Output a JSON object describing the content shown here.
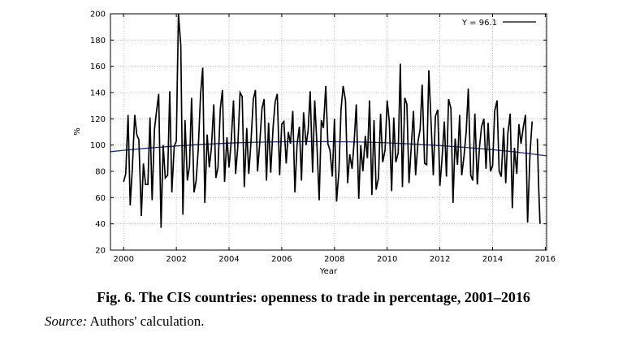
{
  "chart_data": {
    "type": "line",
    "xlabel": "Year",
    "ylabel": "%",
    "xlim": [
      1999.5,
      2016.05
    ],
    "ylim": [
      20,
      200
    ],
    "x_ticks": [
      2000,
      2002,
      2004,
      2006,
      2008,
      2010,
      2012,
      2014,
      2016
    ],
    "y_ticks": [
      20,
      40,
      60,
      80,
      100,
      120,
      140,
      160,
      180,
      200
    ],
    "grid": true,
    "legend": {
      "position": "top-right",
      "label": "Y = 96.1"
    },
    "colors": {
      "series": "#000000",
      "trend": "#1a2a8a",
      "grid": "#b0b0b0"
    },
    "series": [
      {
        "x": [
          2000.0,
          2000.08,
          2000.17,
          2000.25,
          2000.33,
          2000.42,
          2000.5,
          2000.58,
          2000.67,
          2000.75,
          2000.83,
          2000.92,
          2001.0,
          2001.08,
          2001.17,
          2001.25,
          2001.33,
          2001.42,
          2001.5,
          2001.58,
          2001.67,
          2001.75,
          2001.83,
          2001.92,
          2002.0,
          2002.08,
          2002.17,
          2002.25,
          2002.33,
          2002.42,
          2002.5,
          2002.58,
          2002.67,
          2002.75,
          2002.83,
          2002.92,
          2003.0,
          2003.08,
          2003.17,
          2003.25,
          2003.33,
          2003.42,
          2003.5,
          2003.58,
          2003.67,
          2003.75,
          2003.83,
          2003.92,
          2004.0,
          2004.08,
          2004.17,
          2004.25,
          2004.33,
          2004.42,
          2004.5,
          2004.58,
          2004.67,
          2004.75,
          2004.83,
          2004.92,
          2005.0,
          2005.08,
          2005.17,
          2005.25,
          2005.33,
          2005.42,
          2005.5,
          2005.58,
          2005.67,
          2005.75,
          2005.83,
          2005.92,
          2006.0,
          2006.08,
          2006.17,
          2006.25,
          2006.33,
          2006.42,
          2006.5,
          2006.58,
          2006.67,
          2006.75,
          2006.83,
          2006.92,
          2007.0,
          2007.08,
          2007.17,
          2007.25,
          2007.33,
          2007.42,
          2007.5,
          2007.58,
          2007.67,
          2007.75,
          2007.83,
          2007.92,
          2008.0,
          2008.08,
          2008.17,
          2008.25,
          2008.33,
          2008.42,
          2008.5,
          2008.58,
          2008.67,
          2008.75,
          2008.83,
          2008.92,
          2009.0,
          2009.08,
          2009.17,
          2009.25,
          2009.33,
          2009.42,
          2009.5,
          2009.58,
          2009.67,
          2009.75,
          2009.83,
          2009.92,
          2010.0,
          2010.08,
          2010.17,
          2010.25,
          2010.33,
          2010.42,
          2010.5,
          2010.58,
          2010.67,
          2010.75,
          2010.83,
          2010.92,
          2011.0,
          2011.08,
          2011.17,
          2011.25,
          2011.33,
          2011.42,
          2011.5,
          2011.58,
          2011.67,
          2011.75,
          2011.83,
          2011.92,
          2012.0,
          2012.08,
          2012.17,
          2012.25,
          2012.33,
          2012.42,
          2012.5,
          2012.58,
          2012.67,
          2012.75,
          2012.83,
          2012.92,
          2013.0,
          2013.08,
          2013.17,
          2013.25,
          2013.33,
          2013.42,
          2013.5,
          2013.58,
          2013.67,
          2013.75,
          2013.83,
          2013.92,
          2014.0,
          2014.08,
          2014.17,
          2014.25,
          2014.33,
          2014.42,
          2014.5,
          2014.58,
          2014.67,
          2014.75,
          2014.83,
          2014.92,
          2015.0,
          2015.08,
          2015.17,
          2015.25,
          2015.33,
          2015.42,
          2015.5
        ],
        "values": [
          72,
          78,
          123,
          54,
          82,
          123,
          108,
          104,
          46,
          86,
          70,
          70,
          121,
          58,
          112,
          126,
          139,
          37,
          100,
          75,
          77,
          141,
          64,
          99,
          103,
          200,
          176,
          47,
          119,
          73,
          84,
          136,
          64,
          73,
          96,
          139,
          159,
          56,
          108,
          83,
          98,
          131,
          75,
          83,
          128,
          142,
          72,
          106,
          83,
          102,
          134,
          78,
          98,
          140,
          137,
          68,
          113,
          78,
          101,
          135,
          142,
          80,
          103,
          128,
          135,
          73,
          117,
          79,
          113,
          133,
          139,
          77,
          116,
          118,
          86,
          110,
          101,
          126,
          64,
          100,
          114,
          73,
          125,
          100,
          111,
          141,
          79,
          134,
          102,
          58,
          119,
          113,
          145,
          101,
          96,
          76,
          120,
          57,
          80,
          127,
          145,
          134,
          71,
          93,
          82,
          103,
          131,
          59,
          100,
          80,
          107,
          90,
          134,
          62,
          119,
          66,
          75,
          124,
          87,
          96,
          134,
          118,
          65,
          121,
          87,
          94,
          162,
          68,
          136,
          131,
          71,
          100,
          126,
          77,
          103,
          112,
          146,
          86,
          85,
          157,
          115,
          77,
          122,
          127,
          69,
          89,
          118,
          76,
          135,
          128,
          56,
          105,
          85,
          123,
          77,
          92,
          110,
          143,
          77,
          73,
          124,
          70,
          98,
          114,
          120,
          82,
          117,
          80,
          84,
          126,
          134,
          80,
          76,
          113,
          71,
          109,
          124,
          52,
          98,
          78,
          116,
          101,
          114,
          123,
          41,
          94,
          118
        ]
      },
      {
        "x": [
          2015.7,
          2015.75,
          2015.8
        ],
        "values": [
          105,
          67,
          40
        ]
      }
    ],
    "trend": {
      "x": [
        1999.5,
        2000,
        2001,
        2002,
        2003,
        2004,
        2005,
        2006,
        2007,
        2008,
        2009,
        2010,
        2011,
        2012,
        2013,
        2014,
        2015,
        2016.05
      ],
      "values": [
        95,
        96,
        97.8,
        99.3,
        100.6,
        101.5,
        102.2,
        102.5,
        102.7,
        102.6,
        102.3,
        101.7,
        100.8,
        99.6,
        98.2,
        96.5,
        94.5,
        91.8
      ]
    }
  },
  "caption": {
    "title": "Fig. 6. The CIS countries: openness to trade in percentage, 2001–2016",
    "source_label": "Source:",
    "source_text": " Authors' calculation."
  }
}
